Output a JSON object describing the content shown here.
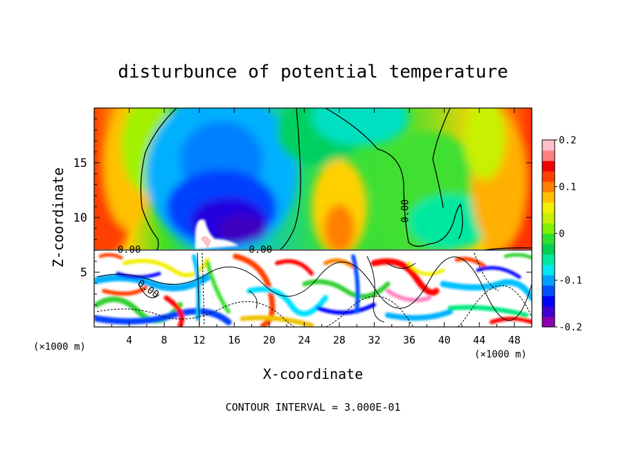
{
  "chart_data": {
    "type": "heatmap",
    "title": "disturbunce of potential temperature",
    "xlabel": "X-coordinate",
    "ylabel": "Z-coordinate",
    "x_unit": "(×1000 m)",
    "y_unit": "(×1000 m)",
    "footer": "CONTOUR INTERVAL = 3.000E-01",
    "xlim": [
      0,
      50
    ],
    "ylim": [
      0,
      20
    ],
    "x_ticks": [
      4,
      8,
      12,
      16,
      20,
      24,
      28,
      32,
      36,
      40,
      44,
      48
    ],
    "y_ticks": [
      5,
      10,
      15
    ],
    "colorbar": {
      "range": [
        -0.2,
        0.2
      ],
      "ticks": [
        {
          "value": 0.2,
          "label": "0.2"
        },
        {
          "value": 0.1,
          "label": "0.1"
        },
        {
          "value": 0.0,
          "label": "0"
        },
        {
          "value": -0.1,
          "label": "-0.1"
        },
        {
          "value": -0.2,
          "label": "-0.2"
        }
      ],
      "colors": [
        "#8a00b0",
        "#4000d0",
        "#0000ff",
        "#0050ff",
        "#00a0ff",
        "#00e8f0",
        "#00e8a0",
        "#00d050",
        "#30e030",
        "#80f000",
        "#c8f000",
        "#f0f000",
        "#ffc000",
        "#ff8000",
        "#ff4000",
        "#f00000",
        "#ff8080",
        "#ffc0c8"
      ]
    },
    "contour_labels": [
      {
        "text": "0.00",
        "x": 4.0,
        "z": 7.1,
        "rotate": 0
      },
      {
        "text": "0.00",
        "x": 19.0,
        "z": 7.1,
        "rotate": 0
      },
      {
        "text": "0.00",
        "x": 35.5,
        "z": 10.6,
        "rotate": -90
      },
      {
        "text": "0.00",
        "x": 6.2,
        "z": 3.5,
        "rotate": 35
      }
    ]
  }
}
